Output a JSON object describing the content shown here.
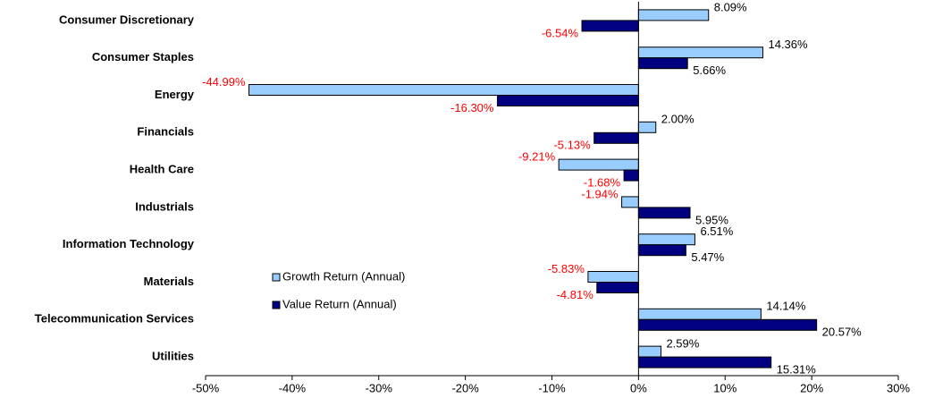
{
  "chart_data": {
    "type": "hbar",
    "categories": [
      "Consumer Discretionary",
      "Consumer Staples",
      "Energy",
      "Financials",
      "Health Care",
      "Industrials",
      "Information Technology",
      "Materials",
      "Telecommunication Services",
      "Utilities"
    ],
    "series": [
      {
        "name": "Growth Return (Annual)",
        "color": "#99ccff",
        "values": [
          8.09,
          14.36,
          -44.99,
          2.0,
          -9.21,
          -1.94,
          6.51,
          -5.83,
          14.14,
          2.59
        ],
        "value_labels": [
          "8.09%",
          "14.36%",
          "-44.99%",
          "2.00%",
          "-9.21%",
          "-1.94%",
          "6.51%",
          "-5.83%",
          "14.14%",
          "2.59%"
        ]
      },
      {
        "name": "Value Return (Annual)",
        "color": "#000080",
        "values": [
          -6.54,
          5.66,
          -16.3,
          -5.13,
          -1.68,
          5.95,
          5.47,
          -4.81,
          20.57,
          15.31
        ],
        "value_labels": [
          "-6.54%",
          "5.66%",
          "-16.30%",
          "-5.13%",
          "-1.68%",
          "5.95%",
          "5.47%",
          "-4.81%",
          "20.57%",
          "15.31%"
        ]
      }
    ],
    "xlim": [
      -50,
      30
    ],
    "xticks": [
      {
        "value": -50,
        "label": "-50%"
      },
      {
        "value": -40,
        "label": "-40%"
      },
      {
        "value": -30,
        "label": "-30%"
      },
      {
        "value": -20,
        "label": "-20%"
      },
      {
        "value": -10,
        "label": "-10%"
      },
      {
        "value": 0,
        "label": "0%"
      },
      {
        "value": 10,
        "label": "10%"
      },
      {
        "value": 20,
        "label": "20%"
      },
      {
        "value": 30,
        "label": "30%"
      }
    ],
    "negative_label_color": "#ff0000",
    "positive_label_color": "#000000",
    "legend": "center-left"
  }
}
